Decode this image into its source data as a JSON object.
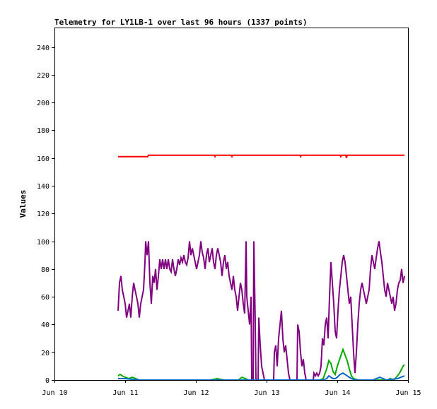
{
  "chart_data": {
    "type": "line",
    "title": "Telemetry for LY1LB-1 over last 96 hours (1337 points)",
    "ylabel": "Values",
    "xlabel": "",
    "ylim": [
      0,
      254
    ],
    "xlim": [
      0,
      5
    ],
    "y_ticks": [
      0,
      20,
      40,
      60,
      80,
      100,
      120,
      140,
      160,
      180,
      200,
      220,
      240
    ],
    "x_ticks": [
      {
        "value": 0,
        "label": "Jun 10"
      },
      {
        "value": 1,
        "label": "Jun 11"
      },
      {
        "value": 2,
        "label": "Jun 12"
      },
      {
        "value": 3,
        "label": "Jun 13"
      },
      {
        "value": 4,
        "label": "Jun 14"
      },
      {
        "value": 5,
        "label": "Jun 15"
      }
    ],
    "grid": false,
    "legend": "none",
    "series": [
      {
        "color": "#ff0000",
        "points": [
          [
            0.9,
            161
          ],
          [
            1.1,
            161
          ],
          [
            1.32,
            161
          ],
          [
            1.33,
            162
          ],
          [
            1.6,
            162
          ],
          [
            2.0,
            162
          ],
          [
            2.26,
            162
          ],
          [
            2.27,
            161
          ],
          [
            2.28,
            162
          ],
          [
            2.5,
            162
          ],
          [
            2.51,
            161
          ],
          [
            2.52,
            162
          ],
          [
            3.0,
            162
          ],
          [
            3.47,
            162
          ],
          [
            3.48,
            161
          ],
          [
            3.49,
            162
          ],
          [
            4.0,
            162
          ],
          [
            4.04,
            162
          ],
          [
            4.05,
            161
          ],
          [
            4.06,
            162
          ],
          [
            4.12,
            162
          ],
          [
            4.13,
            160
          ],
          [
            4.14,
            162
          ],
          [
            4.5,
            162
          ],
          [
            4.95,
            162
          ]
        ]
      },
      {
        "color": "#800080",
        "points": [
          [
            0.9,
            50
          ],
          [
            0.92,
            70
          ],
          [
            0.94,
            75
          ],
          [
            0.96,
            65
          ],
          [
            0.98,
            60
          ],
          [
            1.0,
            55
          ],
          [
            1.02,
            45
          ],
          [
            1.04,
            50
          ],
          [
            1.06,
            55
          ],
          [
            1.08,
            45
          ],
          [
            1.1,
            60
          ],
          [
            1.12,
            70
          ],
          [
            1.14,
            65
          ],
          [
            1.16,
            60
          ],
          [
            1.18,
            55
          ],
          [
            1.2,
            45
          ],
          [
            1.22,
            55
          ],
          [
            1.24,
            60
          ],
          [
            1.26,
            65
          ],
          [
            1.28,
            85
          ],
          [
            1.29,
            100
          ],
          [
            1.31,
            90
          ],
          [
            1.33,
            100
          ],
          [
            1.35,
            70
          ],
          [
            1.37,
            55
          ],
          [
            1.39,
            75
          ],
          [
            1.41,
            70
          ],
          [
            1.43,
            80
          ],
          [
            1.45,
            65
          ],
          [
            1.47,
            75
          ],
          [
            1.49,
            87
          ],
          [
            1.51,
            80
          ],
          [
            1.53,
            87
          ],
          [
            1.55,
            80
          ],
          [
            1.57,
            87
          ],
          [
            1.59,
            80
          ],
          [
            1.61,
            87
          ],
          [
            1.63,
            80
          ],
          [
            1.65,
            78
          ],
          [
            1.67,
            87
          ],
          [
            1.69,
            80
          ],
          [
            1.71,
            75
          ],
          [
            1.73,
            80
          ],
          [
            1.75,
            87
          ],
          [
            1.77,
            83
          ],
          [
            1.79,
            88
          ],
          [
            1.81,
            85
          ],
          [
            1.83,
            90
          ],
          [
            1.85,
            85
          ],
          [
            1.87,
            83
          ],
          [
            1.89,
            88
          ],
          [
            1.91,
            100
          ],
          [
            1.93,
            90
          ],
          [
            1.95,
            95
          ],
          [
            1.97,
            90
          ],
          [
            1.99,
            85
          ],
          [
            2.01,
            80
          ],
          [
            2.03,
            85
          ],
          [
            2.05,
            90
          ],
          [
            2.07,
            100
          ],
          [
            2.09,
            92
          ],
          [
            2.11,
            88
          ],
          [
            2.13,
            80
          ],
          [
            2.15,
            90
          ],
          [
            2.17,
            95
          ],
          [
            2.19,
            85
          ],
          [
            2.21,
            90
          ],
          [
            2.23,
            95
          ],
          [
            2.25,
            85
          ],
          [
            2.27,
            80
          ],
          [
            2.29,
            90
          ],
          [
            2.31,
            95
          ],
          [
            2.33,
            90
          ],
          [
            2.35,
            85
          ],
          [
            2.37,
            75
          ],
          [
            2.39,
            85
          ],
          [
            2.41,
            90
          ],
          [
            2.43,
            80
          ],
          [
            2.45,
            85
          ],
          [
            2.47,
            75
          ],
          [
            2.49,
            70
          ],
          [
            2.51,
            65
          ],
          [
            2.53,
            75
          ],
          [
            2.55,
            65
          ],
          [
            2.57,
            60
          ],
          [
            2.59,
            50
          ],
          [
            2.61,
            60
          ],
          [
            2.63,
            70
          ],
          [
            2.65,
            65
          ],
          [
            2.67,
            55
          ],
          [
            2.69,
            48
          ],
          [
            2.71,
            100
          ],
          [
            2.72,
            60
          ],
          [
            2.74,
            50
          ],
          [
            2.76,
            40
          ],
          [
            2.78,
            60
          ],
          [
            2.79,
            0
          ],
          [
            2.81,
            0
          ],
          [
            2.82,
            100
          ],
          [
            2.84,
            40
          ],
          [
            2.85,
            0
          ],
          [
            2.88,
            0
          ],
          [
            2.89,
            45
          ],
          [
            2.91,
            25
          ],
          [
            2.93,
            10
          ],
          [
            2.95,
            5
          ],
          [
            2.97,
            0
          ],
          [
            3.1,
            0
          ],
          [
            3.11,
            20
          ],
          [
            3.13,
            25
          ],
          [
            3.15,
            10
          ],
          [
            3.17,
            30
          ],
          [
            3.19,
            40
          ],
          [
            3.21,
            50
          ],
          [
            3.23,
            30
          ],
          [
            3.25,
            20
          ],
          [
            3.27,
            25
          ],
          [
            3.29,
            15
          ],
          [
            3.31,
            5
          ],
          [
            3.33,
            0
          ],
          [
            3.43,
            0
          ],
          [
            3.44,
            40
          ],
          [
            3.46,
            35
          ],
          [
            3.48,
            20
          ],
          [
            3.5,
            10
          ],
          [
            3.52,
            15
          ],
          [
            3.54,
            5
          ],
          [
            3.56,
            0
          ],
          [
            3.66,
            0
          ],
          [
            3.67,
            5
          ],
          [
            3.69,
            3
          ],
          [
            3.71,
            5
          ],
          [
            3.73,
            3
          ],
          [
            3.75,
            5
          ],
          [
            3.77,
            10
          ],
          [
            3.79,
            30
          ],
          [
            3.81,
            25
          ],
          [
            3.83,
            40
          ],
          [
            3.85,
            45
          ],
          [
            3.87,
            30
          ],
          [
            3.89,
            60
          ],
          [
            3.91,
            85
          ],
          [
            3.93,
            70
          ],
          [
            3.95,
            55
          ],
          [
            3.97,
            35
          ],
          [
            3.99,
            30
          ],
          [
            4.01,
            50
          ],
          [
            4.03,
            65
          ],
          [
            4.05,
            75
          ],
          [
            4.07,
            85
          ],
          [
            4.09,
            90
          ],
          [
            4.11,
            85
          ],
          [
            4.13,
            75
          ],
          [
            4.15,
            65
          ],
          [
            4.17,
            55
          ],
          [
            4.19,
            60
          ],
          [
            4.21,
            40
          ],
          [
            4.23,
            20
          ],
          [
            4.25,
            5
          ],
          [
            4.27,
            20
          ],
          [
            4.29,
            40
          ],
          [
            4.31,
            55
          ],
          [
            4.33,
            65
          ],
          [
            4.35,
            70
          ],
          [
            4.37,
            65
          ],
          [
            4.39,
            60
          ],
          [
            4.41,
            55
          ],
          [
            4.43,
            60
          ],
          [
            4.45,
            65
          ],
          [
            4.47,
            80
          ],
          [
            4.49,
            90
          ],
          [
            4.51,
            85
          ],
          [
            4.53,
            80
          ],
          [
            4.55,
            88
          ],
          [
            4.57,
            95
          ],
          [
            4.59,
            100
          ],
          [
            4.61,
            92
          ],
          [
            4.63,
            85
          ],
          [
            4.65,
            75
          ],
          [
            4.67,
            65
          ],
          [
            4.69,
            60
          ],
          [
            4.71,
            70
          ],
          [
            4.73,
            65
          ],
          [
            4.75,
            60
          ],
          [
            4.77,
            55
          ],
          [
            4.79,
            60
          ],
          [
            4.81,
            50
          ],
          [
            4.83,
            55
          ],
          [
            4.85,
            65
          ],
          [
            4.87,
            70
          ],
          [
            4.89,
            72
          ],
          [
            4.91,
            80
          ],
          [
            4.93,
            70
          ],
          [
            4.95,
            75
          ]
        ]
      },
      {
        "color": "#00aa00",
        "points": [
          [
            0.9,
            3
          ],
          [
            0.93,
            4
          ],
          [
            0.96,
            3
          ],
          [
            1.0,
            2
          ],
          [
            1.05,
            1
          ],
          [
            1.1,
            2
          ],
          [
            1.15,
            1
          ],
          [
            1.2,
            0
          ],
          [
            1.4,
            0
          ],
          [
            2.0,
            0
          ],
          [
            2.2,
            0
          ],
          [
            2.3,
            1
          ],
          [
            2.4,
            0
          ],
          [
            2.6,
            0
          ],
          [
            2.65,
            2
          ],
          [
            2.7,
            1
          ],
          [
            2.75,
            0
          ],
          [
            3.6,
            0
          ],
          [
            3.75,
            0
          ],
          [
            3.8,
            1
          ],
          [
            3.85,
            8
          ],
          [
            3.88,
            14
          ],
          [
            3.91,
            12
          ],
          [
            3.94,
            6
          ],
          [
            3.97,
            4
          ],
          [
            4.0,
            10
          ],
          [
            4.04,
            16
          ],
          [
            4.08,
            22
          ],
          [
            4.11,
            18
          ],
          [
            4.14,
            14
          ],
          [
            4.17,
            8
          ],
          [
            4.2,
            3
          ],
          [
            4.23,
            1
          ],
          [
            4.3,
            0
          ],
          [
            4.6,
            0
          ],
          [
            4.7,
            0
          ],
          [
            4.75,
            1
          ],
          [
            4.8,
            0
          ],
          [
            4.85,
            3
          ],
          [
            4.88,
            5
          ],
          [
            4.91,
            8
          ],
          [
            4.93,
            10
          ],
          [
            4.95,
            11
          ]
        ]
      },
      {
        "color": "#0066cc",
        "points": [
          [
            0.9,
            1
          ],
          [
            1.0,
            1
          ],
          [
            1.2,
            0
          ],
          [
            1.5,
            0
          ],
          [
            2.0,
            0
          ],
          [
            2.5,
            0
          ],
          [
            3.0,
            0
          ],
          [
            3.5,
            0
          ],
          [
            3.8,
            0
          ],
          [
            3.85,
            1
          ],
          [
            3.88,
            3
          ],
          [
            3.91,
            2
          ],
          [
            3.94,
            1
          ],
          [
            3.97,
            1
          ],
          [
            4.0,
            2
          ],
          [
            4.04,
            4
          ],
          [
            4.08,
            5
          ],
          [
            4.11,
            4
          ],
          [
            4.14,
            3
          ],
          [
            4.17,
            2
          ],
          [
            4.2,
            1
          ],
          [
            4.25,
            0
          ],
          [
            4.5,
            0
          ],
          [
            4.55,
            1
          ],
          [
            4.6,
            2
          ],
          [
            4.65,
            1
          ],
          [
            4.7,
            0
          ],
          [
            4.85,
            1
          ],
          [
            4.9,
            2
          ],
          [
            4.95,
            3
          ]
        ]
      }
    ]
  }
}
